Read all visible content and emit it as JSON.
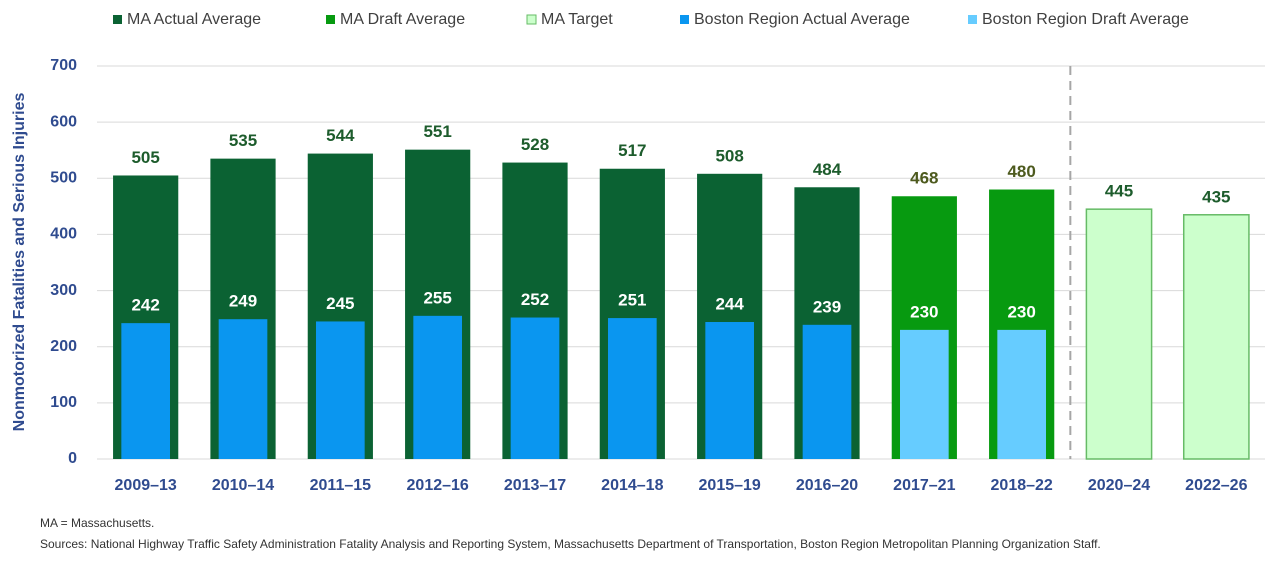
{
  "chart_data": {
    "type": "bar",
    "categories": [
      "2009–13",
      "2010–14",
      "2011–15",
      "2012–16",
      "2013–17",
      "2014–18",
      "2015–19",
      "2016–20",
      "2017–21",
      "2018–22",
      "2020–24",
      "2022–26"
    ],
    "series": [
      {
        "name": "MA Actual Average",
        "color": "#0b6233",
        "label_color": "#1d5c2c",
        "values": [
          505,
          535,
          544,
          551,
          528,
          517,
          508,
          484,
          null,
          null,
          null,
          null
        ]
      },
      {
        "name": "MA Draft Average",
        "color": "#079a10",
        "label_color": "#4d5a1e",
        "values": [
          null,
          null,
          null,
          null,
          null,
          null,
          null,
          null,
          468,
          480,
          null,
          null
        ]
      },
      {
        "name": "MA Target",
        "color": "#ccffcc",
        "edgecolor": "#66bb66",
        "label_color": "#1d5c2c",
        "values": [
          null,
          null,
          null,
          null,
          null,
          null,
          null,
          null,
          null,
          null,
          445,
          435
        ]
      },
      {
        "name": "Boston Region Actual Average",
        "color": "#0a96f0",
        "label_color": "#ffffff",
        "values": [
          242,
          249,
          245,
          255,
          252,
          251,
          244,
          239,
          null,
          null,
          null,
          null
        ]
      },
      {
        "name": "Boston Region Draft Average",
        "color": "#66ccff",
        "label_color": "#ffffff",
        "values": [
          null,
          null,
          null,
          null,
          null,
          null,
          null,
          null,
          230,
          230,
          null,
          null
        ]
      }
    ],
    "ylabel": "Nonmotorized Fatalities and Serious Injuries",
    "ylim": [
      0,
      700
    ],
    "yticks": [
      0,
      100,
      200,
      300,
      400,
      500,
      600,
      700
    ],
    "grid": true,
    "legend": "top",
    "notes": [
      "MA = Massachusetts.",
      "Sources: National Highway Traffic Safety Administration Fatality Analysis and Reporting System, Massachusetts Department of Transportation, Boston Region Metropolitan Planning Organization Staff."
    ]
  }
}
